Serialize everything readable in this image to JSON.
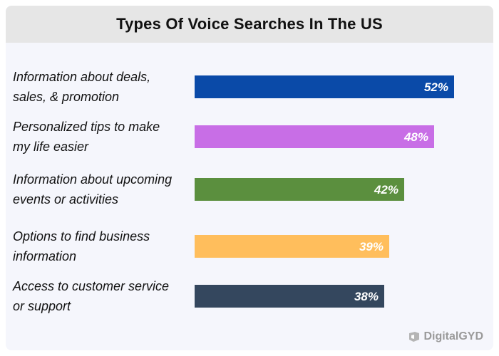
{
  "chart_data": {
    "type": "bar",
    "orientation": "horizontal",
    "title": "Types Of Voice Searches In The US",
    "categories": [
      [
        "Information about deals,",
        "sales, & promotion"
      ],
      [
        "Personalized tips to make",
        "my life easier"
      ],
      [
        "Information about upcoming",
        "events or activities"
      ],
      [
        "Options to find business",
        "information"
      ],
      [
        "Access to customer service",
        "or support"
      ]
    ],
    "values": [
      52,
      48,
      42,
      39,
      38
    ],
    "value_labels": [
      "52%",
      "48%",
      "42%",
      "39%",
      "38%"
    ],
    "colors": [
      "#0a4aa8",
      "#c86ee6",
      "#5b8f3e",
      "#ffbe5c",
      "#34475e"
    ],
    "xlim": [
      0,
      100
    ],
    "grid": false,
    "legend": "none"
  },
  "branding": {
    "text": "DigitalGYD",
    "icon": "digitalgyd-logo-icon"
  }
}
